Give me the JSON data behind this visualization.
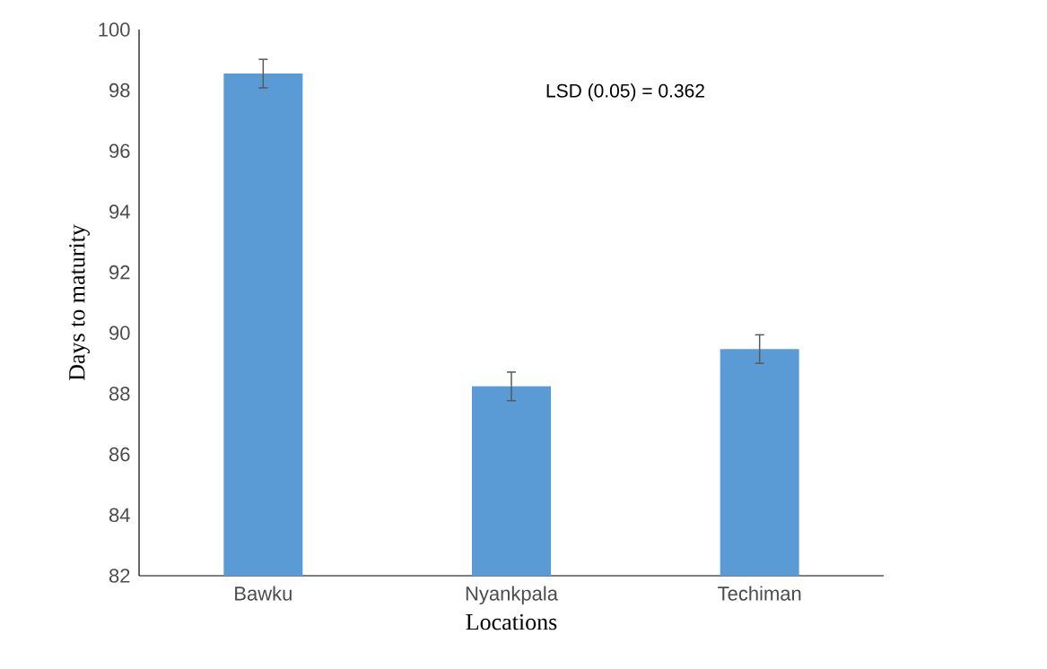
{
  "chart_data": {
    "type": "bar",
    "xlabel": "Locations",
    "ylabel": "Days to maturity",
    "categories": [
      "Bawku",
      "Nyankpala",
      "Techiman"
    ],
    "values": [
      98.55,
      88.24,
      89.47
    ],
    "errors": [
      0.47,
      0.47,
      0.47
    ],
    "color": "#5b9bd5",
    "ylim": [
      82,
      100
    ],
    "yticks": [
      82,
      84,
      86,
      88,
      90,
      92,
      94,
      96,
      98,
      100
    ],
    "annotations": [
      "LSD (0.05) = 0.362"
    ]
  }
}
